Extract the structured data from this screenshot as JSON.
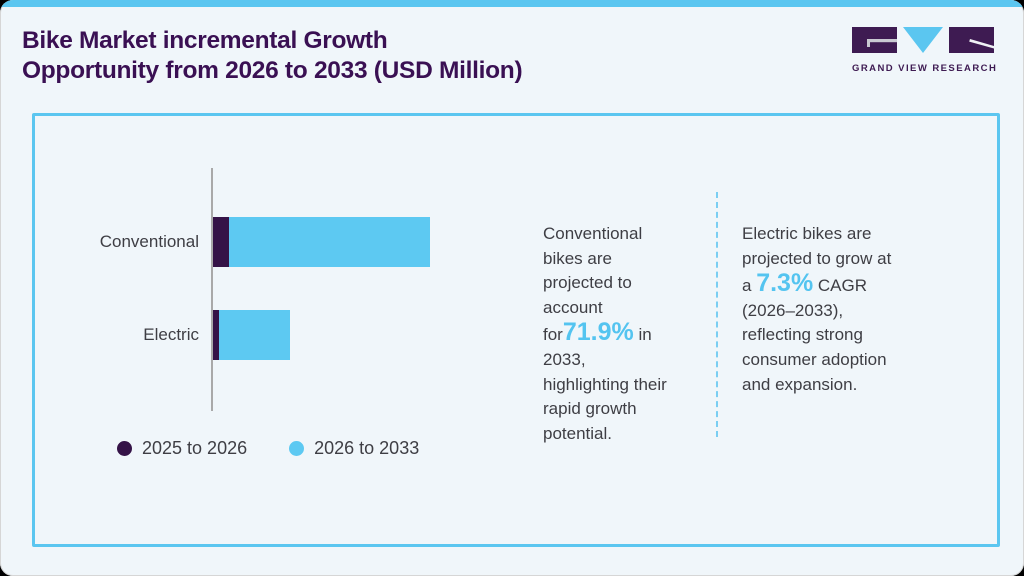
{
  "header": {
    "title_line1": "Bike Market incremental Growth",
    "title_line2": "Opportunity from 2026 to 2033 (USD Million)",
    "logo_text": "GRAND VIEW RESEARCH"
  },
  "colors": {
    "accent_blue": "#5BC6F0",
    "bar_blue": "#5DC9F2",
    "bar_purple": "#351347",
    "title_purple": "#3A1053",
    "logo_purple": "#3E1B52",
    "body_text": "#3E3E44",
    "highlight_blue": "#54C4F0",
    "background": "#F0F6FA"
  },
  "chart_data": {
    "type": "bar",
    "orientation": "horizontal",
    "stacked": true,
    "title": "Bike Market incremental Growth Opportunity from 2026 to 2033 (USD Million)",
    "categories": [
      "Conventional",
      "Electric"
    ],
    "series": [
      {
        "name": "2025 to 2026",
        "color": "#351347",
        "values_relative": [
          16,
          6
        ]
      },
      {
        "name": "2026 to 2033",
        "color": "#5DC9F2",
        "values_relative": [
          201,
          71
        ]
      }
    ],
    "value_axis": {
      "label": "USD Million",
      "tick_labels_visible": false
    },
    "legend_position": "bottom",
    "gridlines": false
  },
  "insights": {
    "conventional": {
      "pre": "Conventional\nbikes are\nprojected to\naccount\nfor",
      "highlight": "71.9%",
      "post": " in\n2033,\nhighlighting their\nrapid growth\npotential."
    },
    "electric": {
      "pre": "Electric bikes are\nprojected to grow at\na ",
      "highlight": "7.3%",
      "post": " CAGR\n(2026–2033),\nreflecting strong\nconsumer adoption\nand expansion."
    }
  }
}
